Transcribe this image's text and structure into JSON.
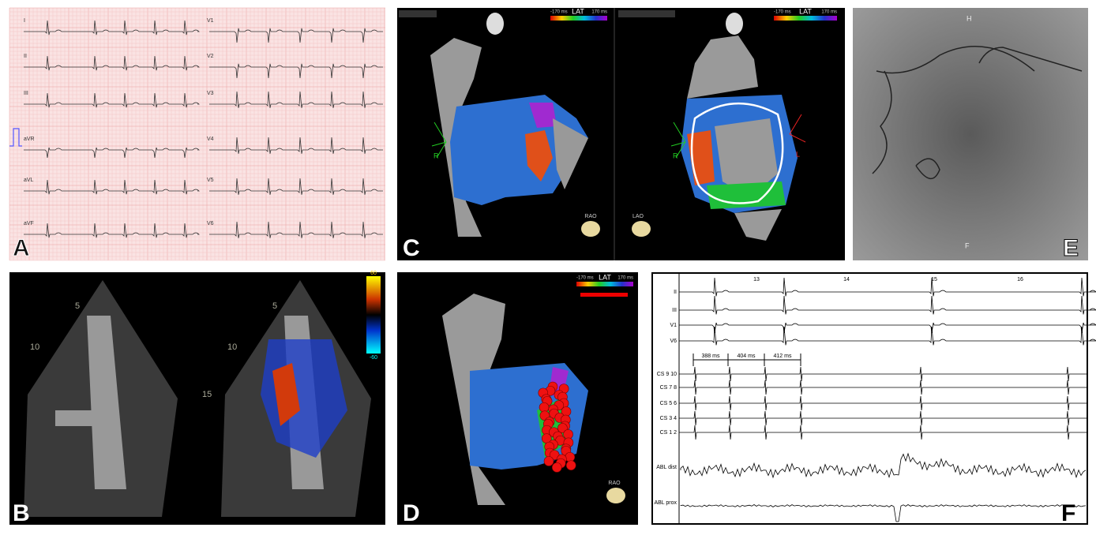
{
  "A": {
    "label": "A",
    "leads_left": [
      "I",
      "II",
      "III",
      "aVR",
      "aVL",
      "aVF"
    ],
    "leads_right": [
      "V1",
      "V2",
      "V3",
      "V4",
      "V5",
      "V6"
    ]
  },
  "B": {
    "label": "B",
    "depth_left": [
      "5",
      "10"
    ],
    "depth_right": [
      "5",
      "10",
      "15"
    ],
    "scale_max": "60",
    "scale_min": "-60"
  },
  "C": {
    "label": "C",
    "map_title": "LAT",
    "scale_min": "-170 ms",
    "scale_max": "170 ms",
    "left_view": "RAO",
    "right_view": "LAO",
    "right_marker": "R",
    "left_marker": "L"
  },
  "D": {
    "label": "D",
    "map_title": "LAT",
    "scale_min": "-170 ms",
    "scale_max": "170 ms",
    "view": "RAO"
  },
  "E": {
    "label": "E",
    "top_marker": "H",
    "bottom_marker": "F"
  },
  "F": {
    "label": "F",
    "time_marks": [
      "13",
      "14",
      "15",
      "16"
    ],
    "surface_leads": [
      "II",
      "III",
      "V1",
      "V6"
    ],
    "intervals": [
      "388 ms",
      "404 ms",
      "412 ms"
    ],
    "cs_leads": [
      "CS 9 10",
      "CS 7 8",
      "CS 5 6",
      "CS 3 4",
      "CS 1 2"
    ],
    "abl_leads": [
      "ABL dist",
      "ABL prox"
    ]
  }
}
